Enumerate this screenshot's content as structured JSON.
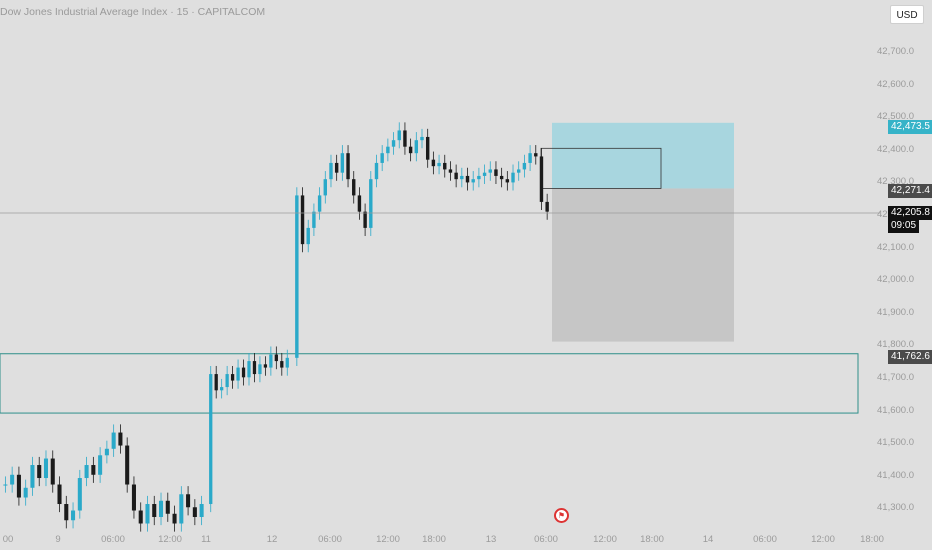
{
  "title": "Dow Jones Industrial Average Index · 15 · CAPITALCOM",
  "currency_button": "USD",
  "colors": {
    "background": "#dfdfdf",
    "up_candle": "#2aa9c9",
    "down_candle": "#1b1b1b",
    "target_zone": "#a8d6df",
    "stop_zone": "#c6c6c6",
    "demand_zone_border": "#2f8f8a",
    "price_badge_target": "#36b3c8",
    "price_badge_entry": "#4b4b4b",
    "price_badge_current": "#111111"
  },
  "price_axis": {
    "ticks": [
      "42,700.0",
      "42,600.0",
      "42,500.0",
      "42,400.0",
      "42,300.0",
      "42,200.0",
      "42,100.0",
      "42,000.0",
      "41,900.0",
      "41,800.0",
      "41,700.0",
      "41,600.0",
      "41,500.0",
      "41,400.0",
      "41,300.0"
    ]
  },
  "price_badges": {
    "target": "42,473.5",
    "entry": "42,271.4",
    "current": "42,205.8",
    "countdown": "09:05",
    "zone": "41,762.6"
  },
  "time_axis": [
    "00",
    "9",
    "06:00",
    "12:00",
    "11",
    "12",
    "06:00",
    "12:00",
    "18:00",
    "13",
    "06:00",
    "12:00",
    "18:00",
    "14",
    "06:00",
    "12:00",
    "18:00"
  ],
  "chart_data": {
    "type": "candlestick",
    "title": "Dow Jones Industrial Average Index · 15 · CAPITALCOM",
    "y_range": [
      41220,
      42790
    ],
    "series_close": [
      41360,
      41390,
      41320,
      41350,
      41420,
      41380,
      41440,
      41360,
      41300,
      41250,
      41280,
      41380,
      41420,
      41390,
      41450,
      41470,
      41520,
      41480,
      41360,
      41280,
      41240,
      41300,
      41260,
      41310,
      41270,
      41240,
      41330,
      41290,
      41260,
      41300,
      41700,
      41650,
      41660,
      41700,
      41680,
      41720,
      41690,
      41740,
      41700,
      41730,
      41720,
      41760,
      41740,
      41720,
      41750,
      42250,
      42100,
      42150,
      42200,
      42250,
      42300,
      42350,
      42320,
      42380,
      42300,
      42250,
      42200,
      42150,
      42300,
      42350,
      42380,
      42400,
      42420,
      42450,
      42400,
      42380,
      42420,
      42430,
      42360,
      42340,
      42350,
      42330,
      42320,
      42300,
      42310,
      42290,
      42300,
      42310,
      42320,
      42330,
      42310,
      42300,
      42290,
      42320,
      42330,
      42350,
      42380,
      42370,
      42230,
      42200
    ],
    "position_tool": {
      "entry": 42271.4,
      "target": 42473.5,
      "stop": 41800
    },
    "zone": {
      "from": 41580,
      "to": 41762.6
    },
    "current_price": 42205.8
  }
}
